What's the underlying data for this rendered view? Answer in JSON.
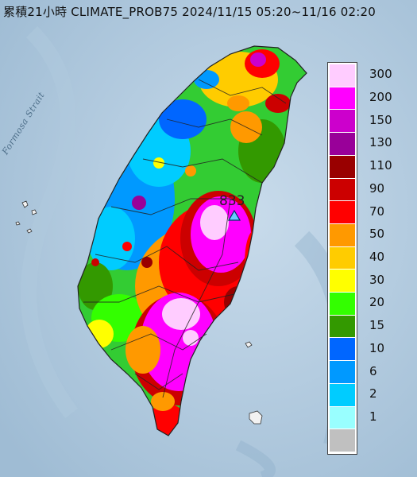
{
  "title": "累積21小時 CLIMATE_PROB75 2024/11/15 05:20~11/16 02:20",
  "strait_label": "Formosa Strait",
  "peak": {
    "value": "833"
  },
  "legend": [
    {
      "label": "300",
      "color": "#ffccff"
    },
    {
      "label": "200",
      "color": "#ff00ff"
    },
    {
      "label": "150",
      "color": "#cc00cc"
    },
    {
      "label": "130",
      "color": "#990099"
    },
    {
      "label": "110",
      "color": "#990000"
    },
    {
      "label": "90",
      "color": "#cc0000"
    },
    {
      "label": "70",
      "color": "#ff0000"
    },
    {
      "label": "50",
      "color": "#ff9900"
    },
    {
      "label": "40",
      "color": "#ffcc00"
    },
    {
      "label": "30",
      "color": "#ffff00"
    },
    {
      "label": "20",
      "color": "#33ff00"
    },
    {
      "label": "15",
      "color": "#339900"
    },
    {
      "label": "10",
      "color": "#0066ff"
    },
    {
      "label": "6",
      "color": "#0099ff"
    },
    {
      "label": "2",
      "color": "#00ccff"
    },
    {
      "label": "1",
      "color": "#99ffff"
    },
    {
      "label": "",
      "color": "#c0c0c0"
    }
  ]
}
